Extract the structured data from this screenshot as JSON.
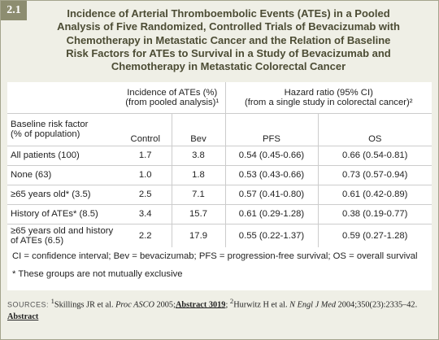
{
  "header": {
    "number": "2.1",
    "title_lines": [
      "Incidence of Arterial Thromboembolic Events (ATEs) in a Pooled",
      "Analysis of Five Randomized, Controlled Trials of Bevacizumab with",
      "Chemotherapy in Metastatic Cancer and the Relation of Baseline",
      "Risk Factors for ATEs to Survival in a Study of Bevacizumab and",
      "Chemotherapy in Metastatic Colorectal Cancer"
    ]
  },
  "table": {
    "group_headers": [
      [
        "Incidence of ATEs (%)",
        "(from pooled analysis)¹"
      ],
      [
        "Hazard ratio (95% CI)",
        "(from a single study in colorectal cancer)²"
      ]
    ],
    "row_header": [
      "Baseline risk factor",
      "(% of population)"
    ],
    "columns": [
      "Control",
      "Bev",
      "PFS",
      "OS"
    ],
    "rows": [
      [
        "All patients (100)",
        "1.7",
        "3.8",
        "0.54 (0.45-0.66)",
        "0.66 (0.54-0.81)"
      ],
      [
        "None (63)",
        "1.0",
        "1.8",
        "0.53 (0.43-0.66)",
        "0.73 (0.57-0.94)"
      ],
      [
        "≥65 years old* (3.5)",
        "2.5",
        "7.1",
        "0.57 (0.41-0.80)",
        "0.61 (0.42-0.89)"
      ],
      [
        "History of ATEs* (8.5)",
        "3.4",
        "15.7",
        "0.61 (0.29-1.28)",
        "0.38 (0.19-0.77)"
      ],
      [
        "≥65 years old and history of ATEs (6.5)",
        "2.2",
        "17.9",
        "0.55 (0.22-1.37)",
        "0.59 (0.27-1.28)"
      ]
    ]
  },
  "footnotes": [
    "CI = confidence interval; Bev = bevacizumab; PFS = progression-free survival; OS = overall survival",
    "* These groups are not mutually exclusive"
  ],
  "sources": {
    "label": "SOURCES:",
    "ref1_num": "1",
    "ref1_authors": "Skillings JR et al.",
    "ref1_journal": "Proc ASCO",
    "ref1_year": "2005;",
    "ref1_link": "Abstract 3019",
    "sep": ";",
    "ref2_num": "2",
    "ref2_authors": "Hurwitz H et al.",
    "ref2_journal": "N Engl J Med",
    "ref2_cite": "2004;350(23):2335–42.",
    "ref2_link": "Abstract"
  }
}
